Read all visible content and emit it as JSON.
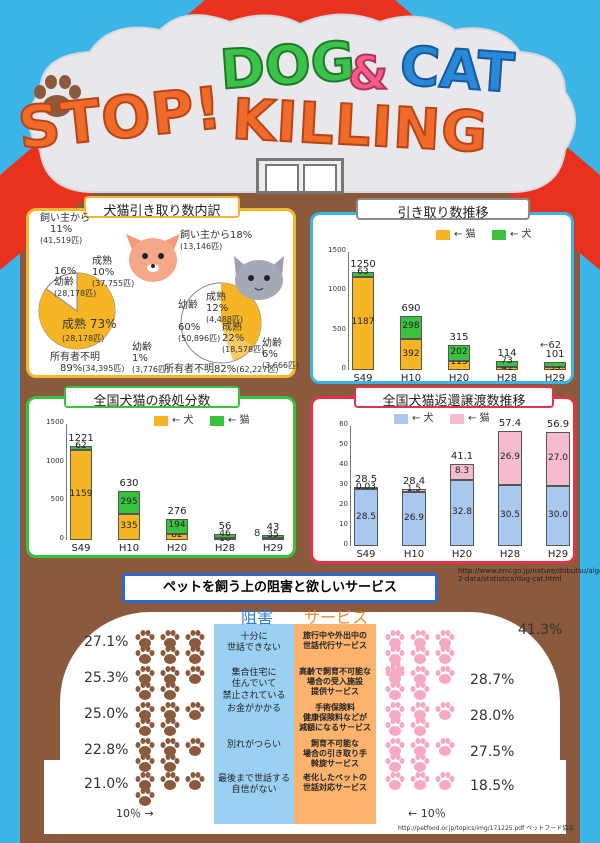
{
  "header": {
    "stop": "STOP!",
    "dog": "DOG",
    "amp": "&",
    "cat": "CAT",
    "killing": "KILLING",
    "colors": {
      "orange": "#f06a2a",
      "green": "#3cc24a",
      "pink": "#f25b8a",
      "blue": "#2a88d8"
    }
  },
  "breakdown": {
    "title": "犬猫引き取り数内訳",
    "dog": {
      "owner_label": "飼い主から",
      "owner_pct": "11%",
      "owner_count": "(41,519匹)",
      "adult_label": "成熟",
      "adult_pct": "10%",
      "adult_count": "(37,755匹)",
      "young_label": "幼齢",
      "young_pct": "16%",
      "young_count": "(28,178匹)",
      "adult73_label": "成熟",
      "adult73_pct": "73%",
      "adult73_count": "(28,178匹)",
      "young1_label": "幼齢",
      "young1_pct": "1%",
      "young1_count": "(3,776匹)",
      "unknown_label": "所有者不明",
      "unknown_pct": "89%",
      "unknown_count": "(34,395匹)"
    },
    "cat": {
      "owner_label": "飼い主から",
      "owner_pct": "18%",
      "owner_count": "(13,146匹)",
      "adult_label": "成熟",
      "adult_pct": "12%",
      "adult_count": "(4,488匹)",
      "young60_label": "幼齢",
      "young60_pct": "60%",
      "young60_count": "(50,896匹)",
      "adult22_label": "成熟",
      "adult22_pct": "22%",
      "adult22_count": "(18,578匹)",
      "young6_label": "幼齢",
      "young6_pct": "6%",
      "young6_count": "(3,666匹)",
      "unknown_label": "所有者不明",
      "unknown_pct": "82%",
      "unknown_count": "(62,227匹)"
    }
  },
  "chart_data": [
    {
      "type": "bar",
      "title": "引き取り数推移",
      "legend": [
        "← 猫",
        "← 犬"
      ],
      "colors": {
        "cat": "#f5b524",
        "dog": "#38c23e"
      },
      "categories": [
        "S49",
        "H10",
        "H20",
        "H28",
        "H29"
      ],
      "yticks": [
        "1500",
        "1000",
        "500",
        "0"
      ],
      "ylim": [
        0,
        1500
      ],
      "series": [
        {
          "name": "猫",
          "values": [
            1187,
            392,
            113,
            41,
            39
          ]
        },
        {
          "name": "犬",
          "values": [
            63,
            298,
            202,
            73,
            62
          ]
        }
      ],
      "totals": [
        "1250",
        "690",
        "315",
        "114",
        "101"
      ],
      "labels_cat": [
        "1187",
        "392",
        "113",
        "41",
        "39"
      ],
      "labels_dog": [
        "63",
        "298",
        "202",
        "73",
        ""
      ],
      "side_note": "←62"
    },
    {
      "type": "bar",
      "title": "全国犬猫の殺処分数",
      "legend": [
        "← 犬",
        "← 猫"
      ],
      "colors": {
        "dog": "#f5b524",
        "cat": "#38c23e"
      },
      "categories": [
        "S49",
        "H10",
        "H20",
        "H28",
        "H29"
      ],
      "yticks": [
        "1500",
        "1000",
        "500",
        "0"
      ],
      "ylim": [
        0,
        1500
      ],
      "series": [
        {
          "name": "犬",
          "values": [
            1159,
            335,
            82,
            10,
            8
          ]
        },
        {
          "name": "猫",
          "values": [
            62,
            295,
            194,
            46,
            35
          ]
        }
      ],
      "totals": [
        "1221",
        "630",
        "276",
        "56",
        "43"
      ],
      "labels_bottom": [
        "1159",
        "335",
        "82",
        "10",
        ""
      ],
      "labels_top": [
        "62",
        "295",
        "194",
        "46",
        "35"
      ],
      "side_note": "8"
    },
    {
      "type": "bar",
      "title": "全国犬猫返還譲渡数推移",
      "legend": [
        "← 犬",
        "← 猫"
      ],
      "colors": {
        "dog": "#a9c8ee",
        "cat": "#f5bcd0"
      },
      "categories": [
        "S49",
        "H10",
        "H20",
        "H28",
        "H29"
      ],
      "yticks": [
        "60",
        "50",
        "40",
        "30",
        "20",
        "10",
        "0"
      ],
      "ylim": [
        0,
        60
      ],
      "series": [
        {
          "name": "犬",
          "values": [
            28.5,
            26.9,
            32.8,
            30.5,
            30.0
          ]
        },
        {
          "name": "猫",
          "values": [
            0.03,
            1.5,
            8.3,
            26.9,
            27.0
          ]
        }
      ],
      "totals": [
        "28.5",
        "28.4",
        "41.1",
        "57.4",
        "56.9"
      ],
      "labels_bottom": [
        "28.5",
        "26.9",
        "32.8",
        "30.5",
        "30.0"
      ],
      "labels_top": [
        "0.03",
        "1.5",
        "8.3",
        "26.9",
        "27.0"
      ]
    }
  ],
  "source": {
    "line1": "http://www.env.go.jp/nature/dobutsu/aigo/",
    "line2": "2-data/statistics/dog-cat.html"
  },
  "services": {
    "banner": "ペットを飼う上の阻害と欲しいサービス",
    "head_obstacles": "阻害",
    "head_services": "サービス",
    "obstacles": [
      {
        "text": "十分に\n世話できない",
        "pct": "27.1%"
      },
      {
        "text": "集合住宅に\n住んでいて\n禁止されている",
        "pct": "25.3%"
      },
      {
        "text": "お金がかかる",
        "pct": "25.0%"
      },
      {
        "text": "別れがつらい",
        "pct": "22.8%"
      },
      {
        "text": "最後まで世話する\n自信がない",
        "pct": "21.0%"
      }
    ],
    "services_list": [
      {
        "text": "旅行中や外出中の\n世話代行サービス",
        "pct": "41.3%"
      },
      {
        "text": "高齢で飼育不可能な\n場合の受入施設\n提供サービス",
        "pct": "28.7%"
      },
      {
        "text": "手術保険料\n健康保険料などが\n減額になるサービス",
        "pct": "28.0%"
      },
      {
        "text": "飼育不可能な\n場合の引き取り手\n斡旋サービス",
        "pct": "27.5%"
      },
      {
        "text": "老化したペットの\n世話対応サービス",
        "pct": "18.5%"
      }
    ],
    "scale_left": "10％ →",
    "scale_right": "← 10％",
    "source2": "http://petfood.or.jp/topics/img/171225.pdf ペットフード協会"
  }
}
